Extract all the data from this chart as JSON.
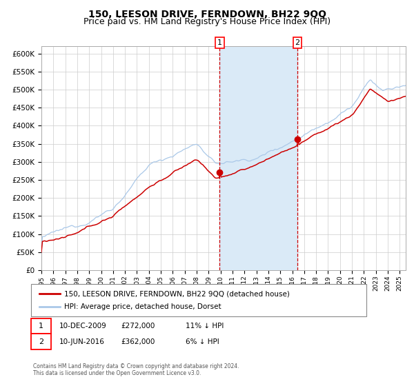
{
  "title": "150, LEESON DRIVE, FERNDOWN, BH22 9QQ",
  "subtitle": "Price paid vs. HM Land Registry's House Price Index (HPI)",
  "title_fontsize": 10,
  "subtitle_fontsize": 9,
  "legend_line1": "150, LEESON DRIVE, FERNDOWN, BH22 9QQ (detached house)",
  "legend_line2": "HPI: Average price, detached house, Dorset",
  "annotation1_date": "10-DEC-2009",
  "annotation1_price": "£272,000",
  "annotation1_hpi": "11% ↓ HPI",
  "annotation1_year": 2009.92,
  "annotation1_value": 272000,
  "annotation2_date": "10-JUN-2016",
  "annotation2_price": "£362,000",
  "annotation2_hpi": "6% ↓ HPI",
  "annotation2_year": 2016.44,
  "annotation2_value": 362000,
  "shade_start": 2009.92,
  "shade_end": 2016.44,
  "ylim": [
    0,
    620000
  ],
  "xlim_start": 1995.0,
  "xlim_end": 2025.5,
  "yticks": [
    0,
    50000,
    100000,
    150000,
    200000,
    250000,
    300000,
    350000,
    400000,
    450000,
    500000,
    550000,
    600000
  ],
  "background_color": "#ffffff",
  "grid_color": "#cccccc",
  "hpi_color": "#aac8e8",
  "price_color": "#cc0000",
  "shade_color": "#daeaf7",
  "vline_color": "#cc0000",
  "footnote": "Contains HM Land Registry data © Crown copyright and database right 2024.\nThis data is licensed under the Open Government Licence v3.0."
}
